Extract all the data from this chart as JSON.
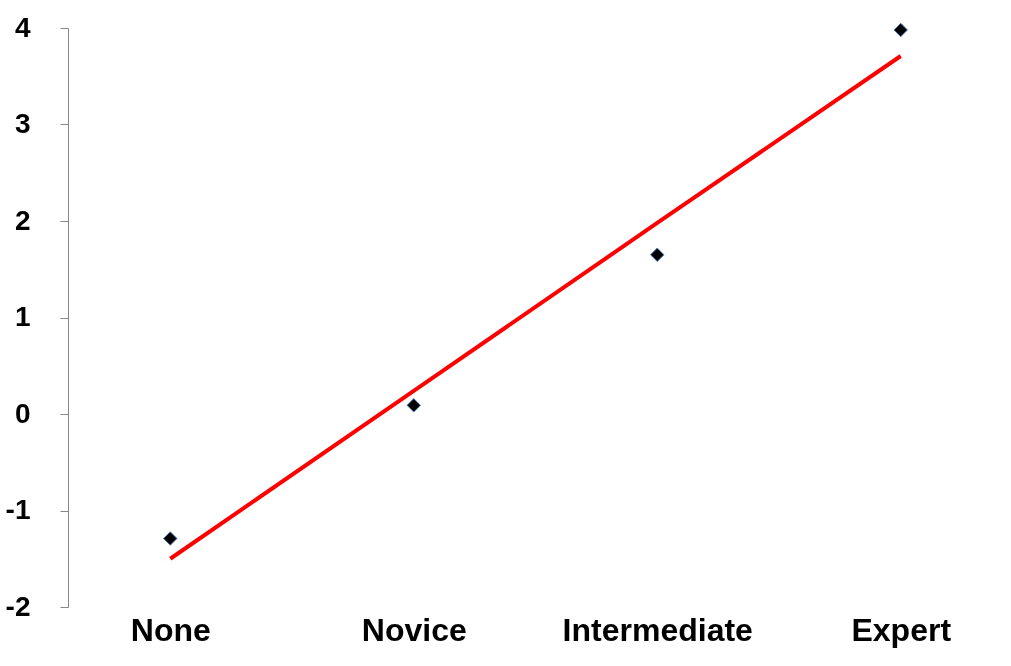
{
  "chart_data": {
    "type": "scatter",
    "categories": [
      "None",
      "Novice",
      "Intermediate",
      "Expert"
    ],
    "ylim": [
      -2,
      4
    ],
    "yticks": [
      -2,
      -1,
      0,
      1,
      2,
      3,
      4
    ],
    "series": [
      {
        "color": "#000000",
        "marker": "diamond",
        "values": [
          -1.29,
          0.09,
          1.65,
          3.98
        ]
      },
      {
        "type": "line",
        "color": "#ff0000",
        "line_style": "solid",
        "values": [
          -1.5,
          0.24,
          1.98,
          3.71
        ]
      }
    ]
  }
}
